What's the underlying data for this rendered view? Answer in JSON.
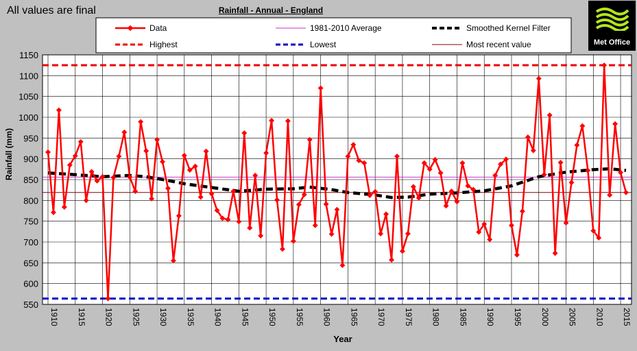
{
  "header": {
    "status_note": "All values are final",
    "logo_text": "Met Office"
  },
  "chart_data": {
    "type": "line",
    "title": "Rainfall - Annual - England",
    "xlabel": "Year",
    "ylabel": "Rainfall (mm)",
    "xlim": [
      1910,
      2016
    ],
    "ylim": [
      550,
      1150
    ],
    "yticks": [
      550,
      600,
      650,
      700,
      750,
      800,
      850,
      900,
      950,
      1000,
      1050,
      1100,
      1150
    ],
    "xticks": [
      1910,
      1915,
      1920,
      1925,
      1930,
      1935,
      1940,
      1945,
      1950,
      1955,
      1960,
      1965,
      1970,
      1975,
      1980,
      1985,
      1990,
      1995,
      2000,
      2005,
      2010,
      2015
    ],
    "grid": true,
    "legend_position": "top",
    "legend": [
      {
        "label": "Data",
        "color": "#ff0000",
        "style": "line-markers"
      },
      {
        "label": "1981-2010 Average",
        "color": "#cc33cc",
        "style": "thin"
      },
      {
        "label": "Smoothed Kernel Filter",
        "color": "#000000",
        "style": "thick-dashed"
      },
      {
        "label": "Highest",
        "color": "#ee0000",
        "style": "dashed"
      },
      {
        "label": "Lowest",
        "color": "#0000cc",
        "style": "dashed"
      },
      {
        "label": "Most recent value",
        "color": "#800000",
        "style": "thin"
      }
    ],
    "series": [
      {
        "name": "Data",
        "color": "#ff0000",
        "x_start": 1910,
        "values": [
          916,
          771,
          1017,
          784,
          885,
          907,
          941,
          800,
          869,
          847,
          857,
          564,
          855,
          906,
          964,
          856,
          822,
          989,
          919,
          804,
          946,
          893,
          829,
          655,
          763,
          908,
          873,
          882,
          808,
          918,
          816,
          776,
          757,
          754,
          822,
          749,
          962,
          734,
          860,
          715,
          914,
          992,
          801,
          683,
          991,
          702,
          790,
          814,
          946,
          740,
          1070,
          791,
          719,
          778,
          644,
          906,
          934,
          896,
          890,
          812,
          821,
          720,
          767,
          657,
          906,
          678,
          720,
          833,
          806,
          890,
          875,
          898,
          866,
          787,
          822,
          797,
          890,
          835,
          826,
          724,
          743,
          706,
          860,
          887,
          899,
          740,
          669,
          774,
          952,
          920,
          1093,
          862,
          1005,
          673,
          891,
          746,
          843,
          933,
          979,
          872,
          727,
          710,
          1125,
          813,
          984,
          867,
          819
        ]
      },
      {
        "name": "Smoothed Kernel Filter",
        "color": "#000000",
        "points": [
          [
            1910,
            866
          ],
          [
            1915,
            862
          ],
          [
            1920,
            857
          ],
          [
            1925,
            860
          ],
          [
            1928,
            857
          ],
          [
            1932,
            848
          ],
          [
            1935,
            840
          ],
          [
            1940,
            831
          ],
          [
            1945,
            822
          ],
          [
            1950,
            827
          ],
          [
            1955,
            828
          ],
          [
            1958,
            832
          ],
          [
            1962,
            826
          ],
          [
            1965,
            819
          ],
          [
            1970,
            813
          ],
          [
            1973,
            807
          ],
          [
            1976,
            808
          ],
          [
            1980,
            815
          ],
          [
            1985,
            818
          ],
          [
            1990,
            823
          ],
          [
            1995,
            835
          ],
          [
            2000,
            857
          ],
          [
            2005,
            868
          ],
          [
            2010,
            874
          ],
          [
            2013,
            876
          ],
          [
            2016,
            872
          ]
        ]
      }
    ],
    "reference_lines": [
      {
        "name": "1981-2010 Average",
        "value": 856,
        "color": "#cc33cc"
      },
      {
        "name": "Highest",
        "value": 1125,
        "color": "#ee0000"
      },
      {
        "name": "Lowest",
        "value": 564,
        "color": "#0000cc"
      },
      {
        "name": "Most recent value",
        "value": 819,
        "color": "#800000"
      }
    ]
  }
}
